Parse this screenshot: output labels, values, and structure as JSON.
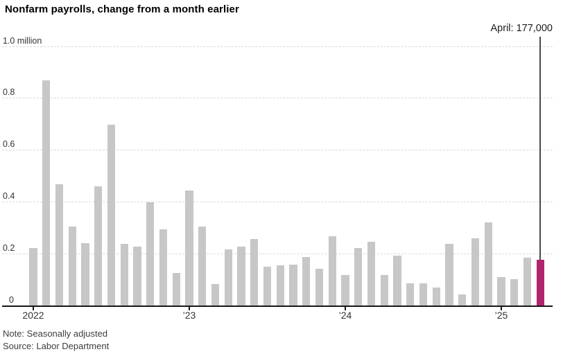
{
  "header": {
    "title": "Nonfarm payrolls, change from a month earlier"
  },
  "footer": {
    "note": "Note: Seasonally adjusted",
    "source": "Source: Labor Department"
  },
  "colors": {
    "bar": "#c7c7c7",
    "highlight": "#b2236e",
    "gridline": "#d9d9d9",
    "baseline": "#161616",
    "annotation_line": "#4a4a4a"
  },
  "chart_data": {
    "type": "bar",
    "title": "Nonfarm payrolls, change from a month earlier",
    "unit": "million",
    "ylabel": "",
    "xlabel": "",
    "ylim": [
      0,
      1.0
    ],
    "grid": "horizontal-dashed",
    "x": [
      "Jan 2022",
      "Feb 2022",
      "Mar 2022",
      "Apr 2022",
      "May 2022",
      "Jun 2022",
      "Jul 2022",
      "Aug 2022",
      "Sep 2022",
      "Oct 2022",
      "Nov 2022",
      "Dec 2022",
      "Jan 2023",
      "Feb 2023",
      "Mar 2023",
      "Apr 2023",
      "May 2023",
      "Jun 2023",
      "Jul 2023",
      "Aug 2023",
      "Sep 2023",
      "Oct 2023",
      "Nov 2023",
      "Dec 2023",
      "Jan 2024",
      "Feb 2024",
      "Mar 2024",
      "Apr 2024",
      "May 2024",
      "Jun 2024",
      "Jul 2024",
      "Aug 2024",
      "Sep 2024",
      "Oct 2024",
      "Nov 2024",
      "Dec 2024",
      "Jan 2025",
      "Feb 2025",
      "Mar 2025",
      "Apr 2025"
    ],
    "values": [
      0.222,
      0.87,
      0.47,
      0.305,
      0.242,
      0.461,
      0.698,
      0.239,
      0.228,
      0.4,
      0.296,
      0.126,
      0.444,
      0.306,
      0.085,
      0.217,
      0.229,
      0.258,
      0.15,
      0.157,
      0.158,
      0.188,
      0.143,
      0.27,
      0.119,
      0.222,
      0.246,
      0.118,
      0.193,
      0.087,
      0.088,
      0.071,
      0.24,
      0.044,
      0.261,
      0.323,
      0.111,
      0.102,
      0.185,
      0.177
    ],
    "highlight_index": 39,
    "y_ticks": [
      {
        "value": 1.0,
        "label": "1.0 million"
      },
      {
        "value": 0.8,
        "label": "0.8"
      },
      {
        "value": 0.6,
        "label": "0.6"
      },
      {
        "value": 0.4,
        "label": "0.4"
      },
      {
        "value": 0.2,
        "label": "0.2"
      },
      {
        "value": 0,
        "label": "0"
      }
    ],
    "x_ticks": [
      {
        "index": 0,
        "label": "2022"
      },
      {
        "index": 12,
        "label": "’23"
      },
      {
        "index": 24,
        "label": "’24"
      },
      {
        "index": 36,
        "label": "’25"
      }
    ],
    "annotation": {
      "text": "April: 177,000",
      "target_index": 39,
      "target_value": 0.177
    }
  }
}
